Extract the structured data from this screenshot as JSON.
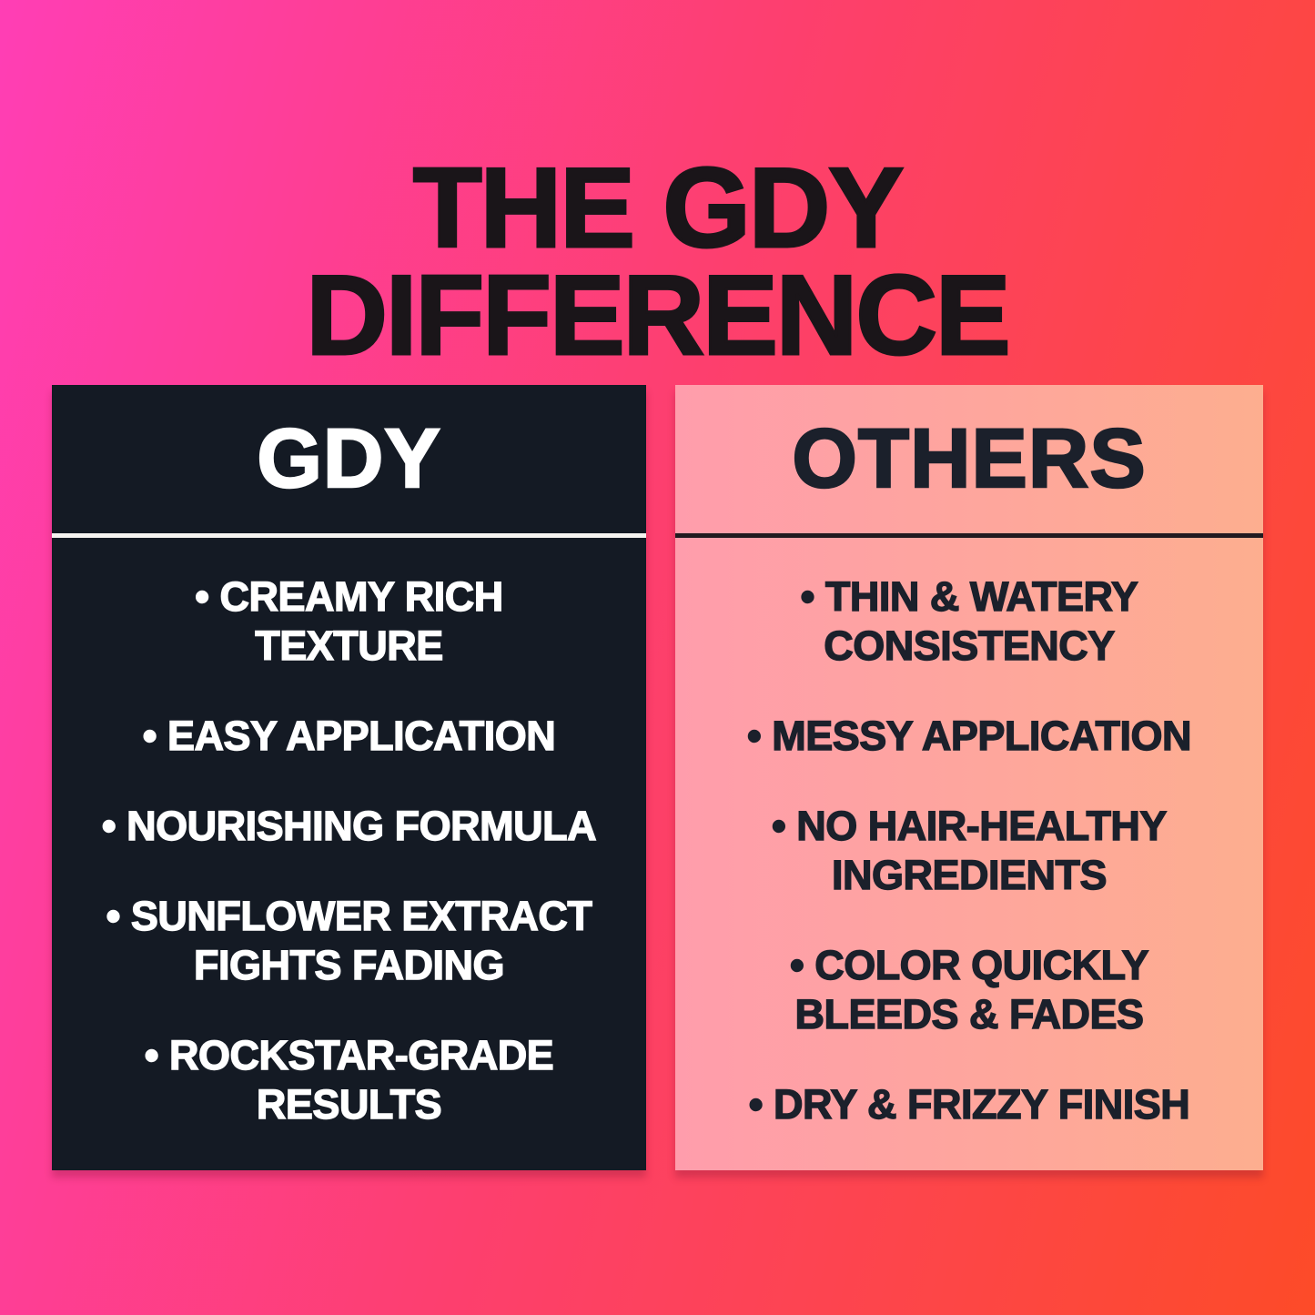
{
  "title": {
    "line1": "THE GDY",
    "line2": "DIFFERENCE"
  },
  "comparison": {
    "gdy": {
      "heading": "GDY",
      "items": [
        {
          "lines": [
            "• CREAMY RICH",
            "TEXTURE"
          ]
        },
        {
          "lines": [
            "• EASY APPLICATION"
          ]
        },
        {
          "lines": [
            "• NOURISHING FORMULA"
          ]
        },
        {
          "lines": [
            "• SUNFLOWER EXTRACT",
            "FIGHTS FADING"
          ]
        },
        {
          "lines": [
            "• ROCKSTAR-GRADE",
            "RESULTS"
          ]
        }
      ]
    },
    "others": {
      "heading": "OTHERS",
      "items": [
        {
          "lines": [
            "• THIN & WATERY",
            "CONSISTENCY"
          ]
        },
        {
          "lines": [
            "• MESSY APPLICATION"
          ]
        },
        {
          "lines": [
            "• NO HAIR-HEALTHY",
            "INGREDIENTS"
          ]
        },
        {
          "lines": [
            "• COLOR QUICKLY",
            "BLEEDS & FADES"
          ]
        },
        {
          "lines": [
            "• DRY & FRIZZY FINISH"
          ]
        }
      ]
    }
  },
  "colors": {
    "background_gradient_start": "#ff3eb5",
    "background_gradient_mid": "#fd3f6e",
    "background_gradient_end": "#fd4b28",
    "title_text": "#1a1519",
    "gdy_panel_background": "#141a24",
    "gdy_panel_text": "#ffffff",
    "gdy_divider": "#f5f3f0",
    "others_panel_gradient_start": "#ff9dac",
    "others_panel_gradient_end": "#fdae8f",
    "others_panel_text": "#1b202b",
    "others_divider": "#211a20"
  }
}
